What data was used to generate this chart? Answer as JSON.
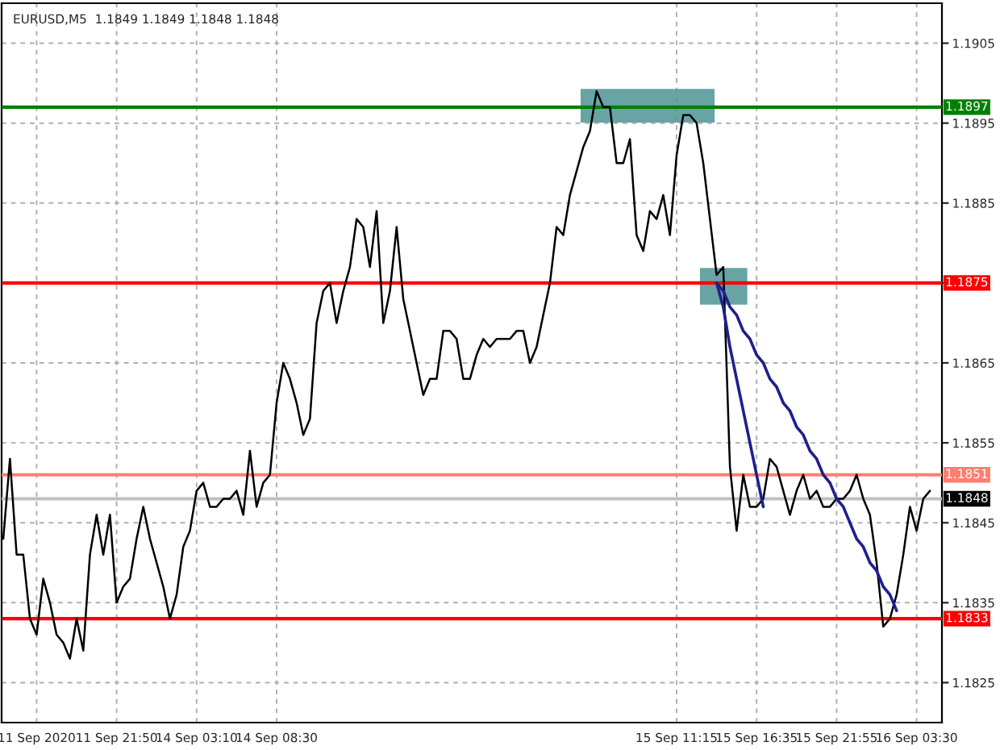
{
  "chart_data": {
    "type": "line",
    "title": "EURUSD,M5  1.1849 1.1849 1.1848 1.1848",
    "categories": [
      null,
      null,
      null,
      null,
      null,
      "11 Sep 2020",
      null,
      null,
      null,
      null,
      null,
      null,
      null,
      null,
      null,
      null,
      null,
      "11 Sep 21:50",
      null,
      null,
      null,
      null,
      null,
      null,
      null,
      null,
      null,
      null,
      null,
      "14 Sep 03:10",
      null,
      null,
      null,
      null,
      null,
      null,
      null,
      null,
      null,
      null,
      null,
      "14 Sep 08:30",
      null,
      null,
      null,
      null,
      null,
      null,
      null,
      null,
      null,
      null,
      null,
      null,
      null,
      null,
      null,
      null,
      null,
      null,
      null,
      null,
      null,
      null,
      null,
      null,
      null,
      null,
      null,
      null,
      null,
      null,
      null,
      null,
      null,
      null,
      null,
      null,
      null,
      null,
      null,
      null,
      null,
      null,
      null,
      null,
      null,
      null,
      null,
      null,
      null,
      null,
      null,
      null,
      null,
      null,
      null,
      null,
      null,
      null,
      null,
      "15 Sep 11:15",
      null,
      null,
      null,
      null,
      null,
      null,
      null,
      null,
      null,
      null,
      null,
      "15 Sep 16:35",
      null,
      null,
      null,
      null,
      null,
      null,
      null,
      null,
      null,
      null,
      null,
      "15 Sep 21:55",
      null,
      null,
      null,
      null,
      null,
      null,
      null,
      null,
      null,
      null,
      null,
      "16 Sep 03:30",
      null,
      null,
      null,
      null
    ],
    "ylim": [
      1.182,
      1.191
    ],
    "yticks": [
      1.1825,
      1.1835,
      1.1845,
      1.1855,
      1.1865,
      {
        "value": 1.1875,
        "label": null
      },
      1.1885,
      1.1895,
      1.1905
    ],
    "grid": true,
    "marker": "none",
    "line_style": "solid",
    "series": [
      {
        "color": "#000000",
        "values": [
          1.1843,
          1.1853,
          1.1841,
          1.1841,
          1.1833,
          1.1831,
          1.1838,
          1.1835,
          1.1831,
          1.183,
          1.1828,
          1.1833,
          1.1829,
          1.1841,
          1.1846,
          1.1841,
          1.1846,
          1.1835,
          1.1837,
          1.1838,
          1.1843,
          1.1847,
          1.1843,
          1.184,
          1.1837,
          1.1833,
          1.1836,
          1.1842,
          1.1844,
          1.1849,
          1.185,
          1.1847,
          1.1847,
          1.1848,
          1.1848,
          1.1849,
          1.1846,
          1.1854,
          1.1847,
          1.185,
          1.1851,
          1.186,
          1.1865,
          1.1863,
          1.186,
          1.1856,
          1.1858,
          1.187,
          1.1874,
          1.1875,
          1.187,
          1.1874,
          1.1877,
          1.1883,
          1.1882,
          1.1877,
          1.1884,
          1.187,
          1.1874,
          1.1882,
          1.1873,
          1.1869,
          1.1865,
          1.1861,
          1.1863,
          1.1863,
          1.1869,
          1.1869,
          1.1868,
          1.1863,
          1.1863,
          1.1866,
          1.1868,
          1.1867,
          1.1868,
          1.1868,
          1.1868,
          1.1869,
          1.1869,
          1.1865,
          1.1867,
          1.1871,
          1.1875,
          1.1882,
          1.1881,
          1.1886,
          1.1889,
          1.1892,
          1.1894,
          1.1899,
          1.1897,
          1.1897,
          1.189,
          1.189,
          1.1893,
          1.1881,
          1.1879,
          1.1884,
          1.1883,
          1.1886,
          1.1881,
          1.1891,
          1.1896,
          1.1896,
          1.1895,
          1.189,
          1.1883,
          1.1876,
          1.1877,
          1.1852,
          1.1844,
          1.1851,
          1.1847,
          1.1847,
          1.1848,
          1.1853,
          1.1852,
          1.1849,
          1.1846,
          1.1849,
          1.1851,
          1.1848,
          1.1849,
          1.1847,
          1.1847,
          1.1848,
          1.1848,
          1.1849,
          1.1851,
          1.1848,
          1.1846,
          1.184,
          1.1832,
          1.1833,
          1.1836,
          1.1841,
          1.1847,
          1.1844,
          1.1848,
          1.1849,
          null,
          null
        ]
      },
      {
        "color": "#1f1f8f",
        "values": [
          null,
          null,
          null,
          null,
          null,
          null,
          null,
          null,
          null,
          null,
          null,
          null,
          null,
          null,
          null,
          null,
          null,
          null,
          null,
          null,
          null,
          null,
          null,
          null,
          null,
          null,
          null,
          null,
          null,
          null,
          null,
          null,
          null,
          null,
          null,
          null,
          null,
          null,
          null,
          null,
          null,
          null,
          null,
          null,
          null,
          null,
          null,
          null,
          null,
          null,
          null,
          null,
          null,
          null,
          null,
          null,
          null,
          null,
          null,
          null,
          null,
          null,
          null,
          null,
          null,
          null,
          null,
          null,
          null,
          null,
          null,
          null,
          null,
          null,
          null,
          null,
          null,
          null,
          null,
          null,
          null,
          null,
          null,
          null,
          null,
          null,
          null,
          null,
          null,
          null,
          null,
          null,
          null,
          null,
          null,
          null,
          null,
          null,
          null,
          null,
          null,
          null,
          null,
          null,
          null,
          null,
          null,
          1.1875,
          1.1872,
          1.1867,
          1.1863,
          1.1859,
          1.1855,
          1.1851,
          1.1847,
          null,
          null,
          null,
          null,
          null,
          null,
          null,
          null,
          null,
          null,
          null,
          null,
          null,
          null,
          null,
          null,
          null,
          null,
          null,
          null,
          null,
          null,
          null,
          null,
          null,
          null,
          null
        ]
      },
      {
        "color": "#1f1f8f",
        "values": [
          null,
          null,
          null,
          null,
          null,
          null,
          null,
          null,
          null,
          null,
          null,
          null,
          null,
          null,
          null,
          null,
          null,
          null,
          null,
          null,
          null,
          null,
          null,
          null,
          null,
          null,
          null,
          null,
          null,
          null,
          null,
          null,
          null,
          null,
          null,
          null,
          null,
          null,
          null,
          null,
          null,
          null,
          null,
          null,
          null,
          null,
          null,
          null,
          null,
          null,
          null,
          null,
          null,
          null,
          null,
          null,
          null,
          null,
          null,
          null,
          null,
          null,
          null,
          null,
          null,
          null,
          null,
          null,
          null,
          null,
          null,
          null,
          null,
          null,
          null,
          null,
          null,
          null,
          null,
          null,
          null,
          null,
          null,
          null,
          null,
          null,
          null,
          null,
          null,
          null,
          null,
          null,
          null,
          null,
          null,
          null,
          null,
          null,
          null,
          null,
          null,
          null,
          null,
          null,
          null,
          null,
          null,
          1.1875,
          1.1874,
          1.1872,
          1.1871,
          1.1869,
          1.1868,
          1.1866,
          1.1865,
          1.1863,
          1.1862,
          1.186,
          1.1859,
          1.1857,
          1.1856,
          1.1854,
          1.1853,
          1.1851,
          1.185,
          1.1848,
          1.1847,
          1.1845,
          1.1843,
          1.1842,
          1.184,
          1.1839,
          1.1837,
          1.1836,
          1.1834,
          null,
          null,
          null,
          null,
          null,
          null,
          null
        ]
      }
    ],
    "ref_lines": [
      {
        "axis": "y",
        "value": 1.1897,
        "label": "1.1897",
        "color": "#008000"
      },
      {
        "axis": "y",
        "value": 1.1875,
        "label": "1.1875",
        "color": "#ff0000"
      },
      {
        "axis": "y",
        "value": 1.1851,
        "label": "1.1851",
        "color": "#ff7f6f"
      },
      {
        "axis": "y",
        "value": 1.1848,
        "label": "1.1848",
        "color": "#c0c0c0"
      },
      {
        "axis": "y",
        "value": 1.1833,
        "label": "1.1833",
        "color": "#ff0000"
      }
    ]
  }
}
